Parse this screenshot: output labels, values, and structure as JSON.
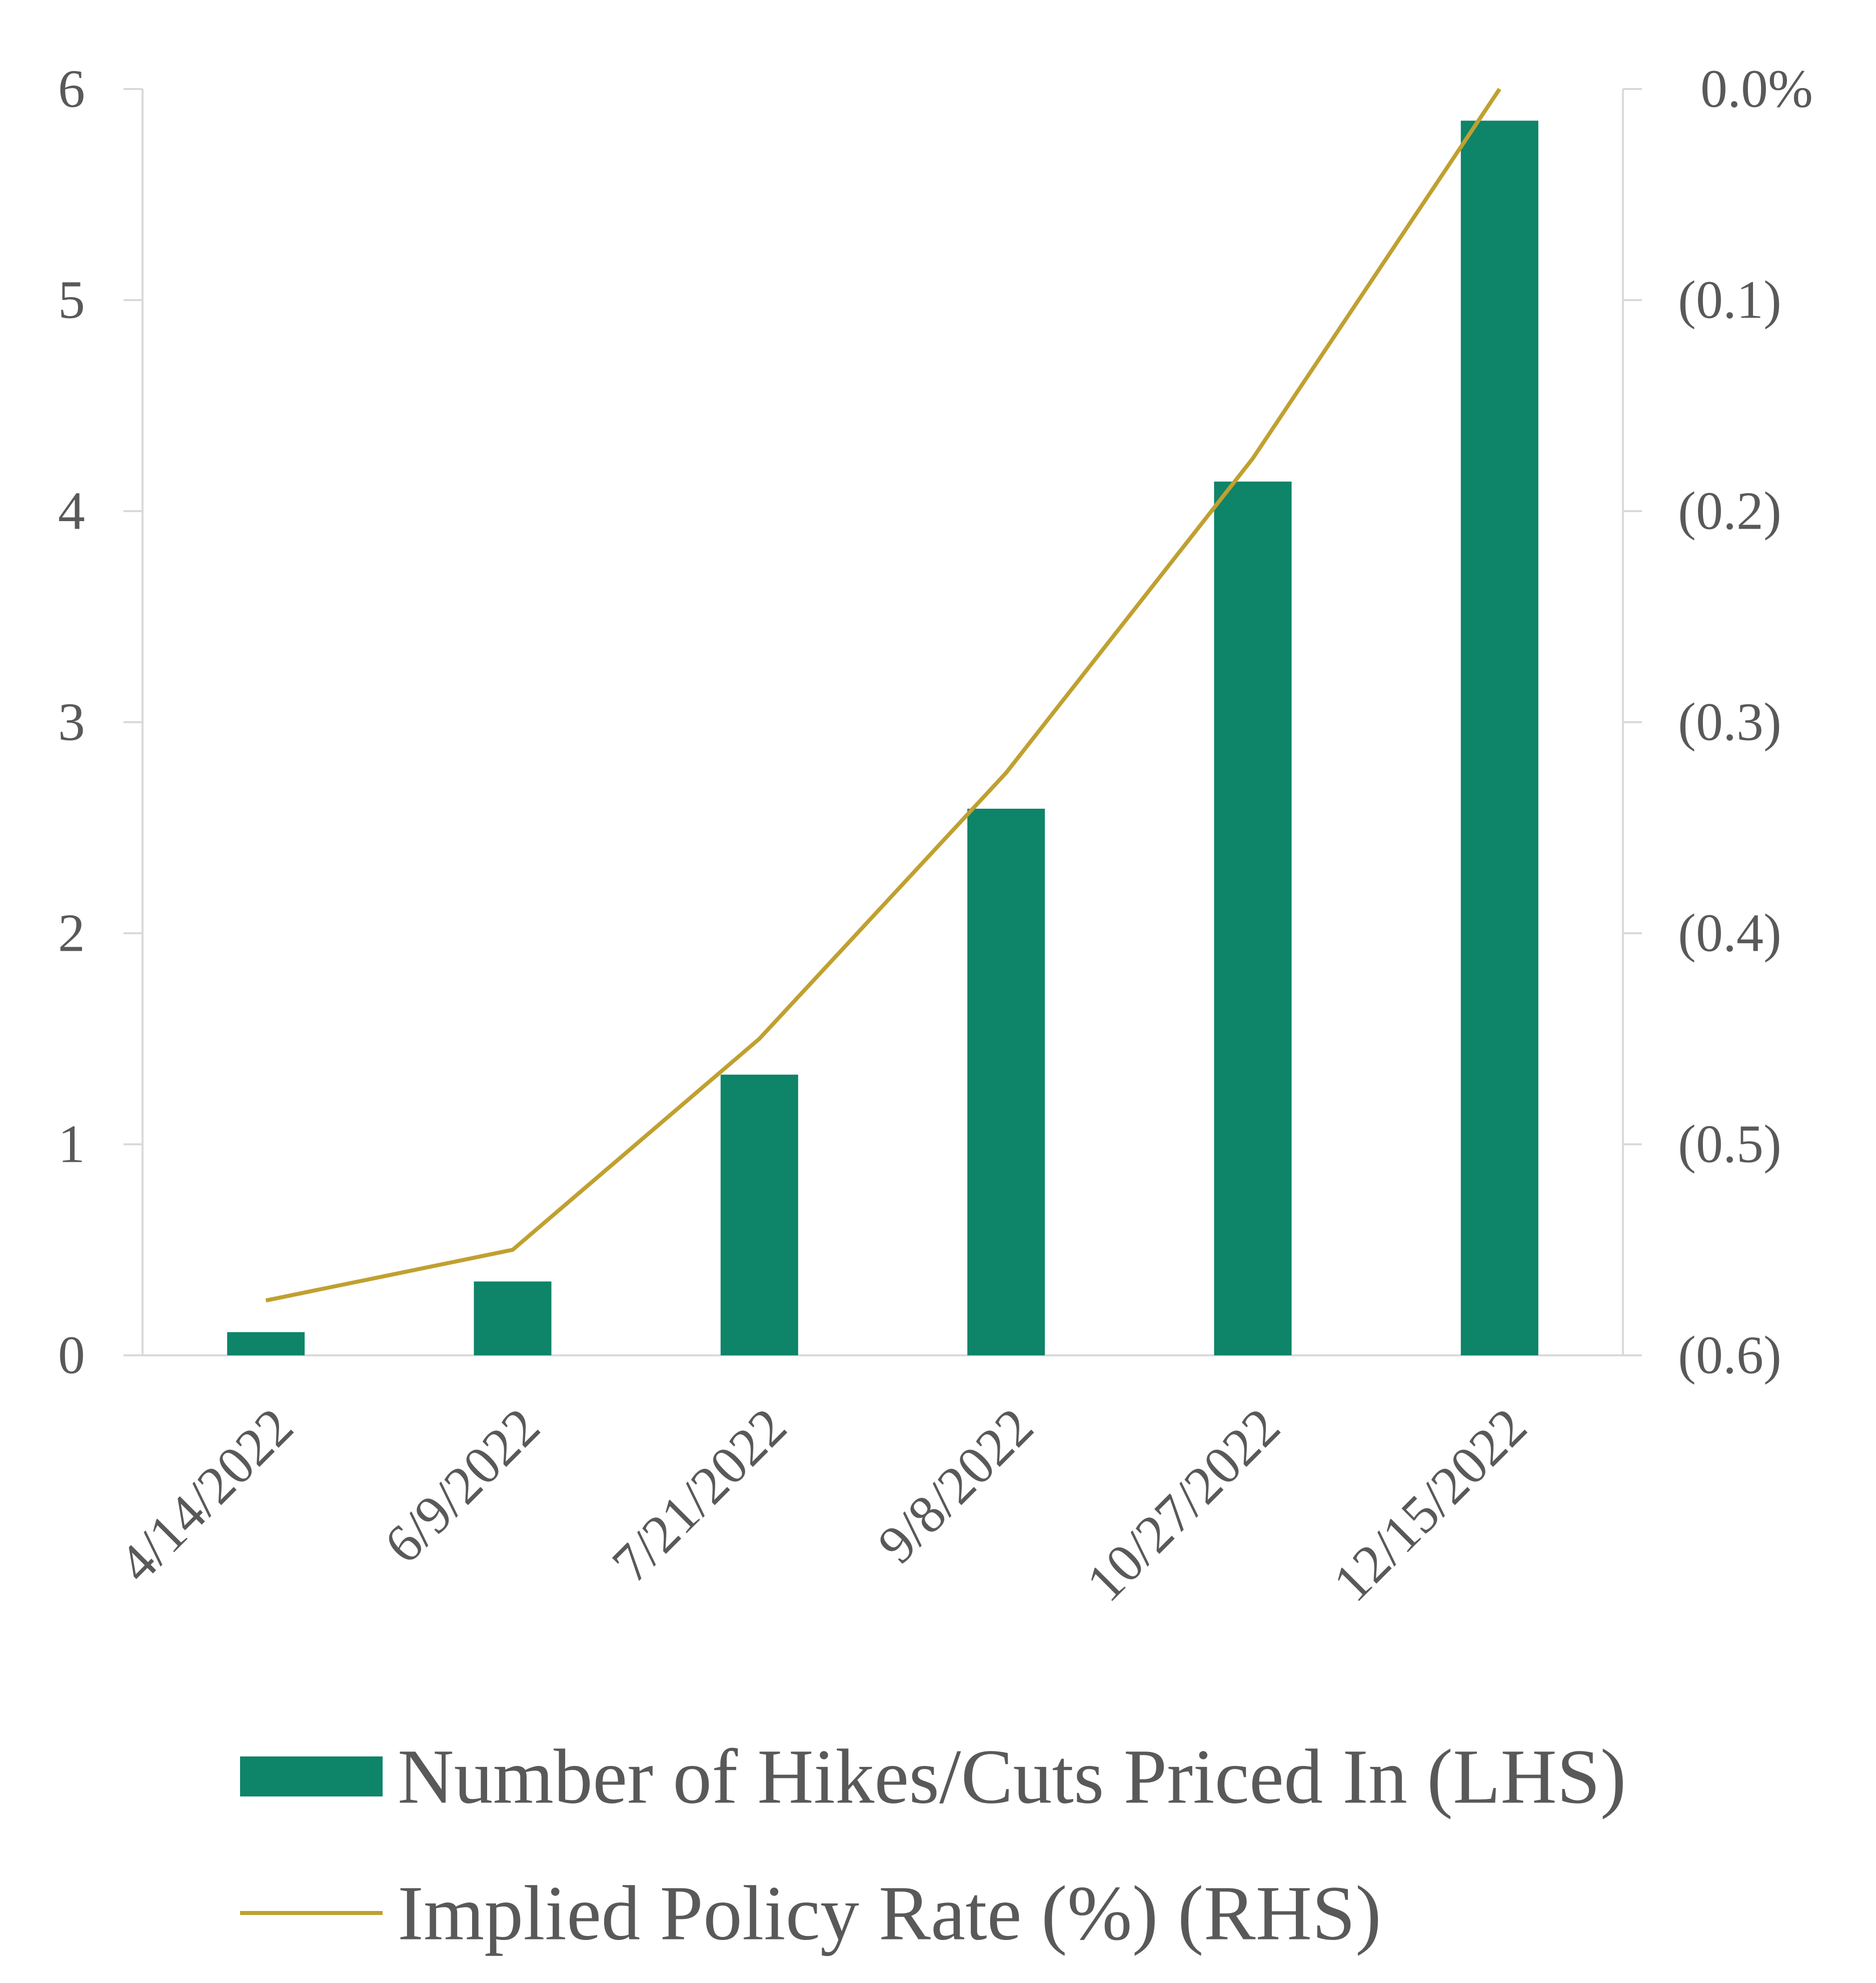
{
  "colors": {
    "bar": "#0E8468",
    "line": "#C0A030",
    "axis": "#D9D9D9",
    "text": "#595959"
  },
  "chart_data": {
    "type": "bar",
    "categories": [
      "4/14/2022",
      "6/9/2022",
      "7/21/2022",
      "9/8/2022",
      "10/27/2022",
      "12/15/2022"
    ],
    "series": [
      {
        "name": "Number of Hikes/Cuts Priced In (LHS)",
        "type": "bar",
        "axis": "left",
        "values": [
          0.11,
          0.35,
          1.33,
          2.59,
          4.14,
          5.85
        ]
      },
      {
        "name": "Implied Policy Rate (%) (RHS)",
        "type": "line",
        "axis": "right",
        "values": [
          -0.574,
          -0.55,
          -0.45,
          -0.324,
          -0.175,
          0.0
        ]
      }
    ],
    "left_axis": {
      "ylim": [
        0,
        6
      ],
      "ticks": [
        0,
        1,
        2,
        3,
        4,
        5,
        6
      ],
      "tick_labels": [
        "0",
        "1",
        "2",
        "3",
        "4",
        "5",
        "6"
      ]
    },
    "right_axis": {
      "ylim": [
        -0.6,
        0.0
      ],
      "ticks": [
        0.0,
        -0.1,
        -0.2,
        -0.3,
        -0.4,
        -0.5,
        -0.6
      ],
      "tick_labels": [
        "0.0%",
        "(0.1)",
        "(0.2)",
        "(0.3)",
        "(0.4)",
        "(0.5)",
        "(0.6)"
      ]
    },
    "grid": false,
    "legend": "bottom",
    "title": "",
    "xlabel": "",
    "ylabel": ""
  }
}
